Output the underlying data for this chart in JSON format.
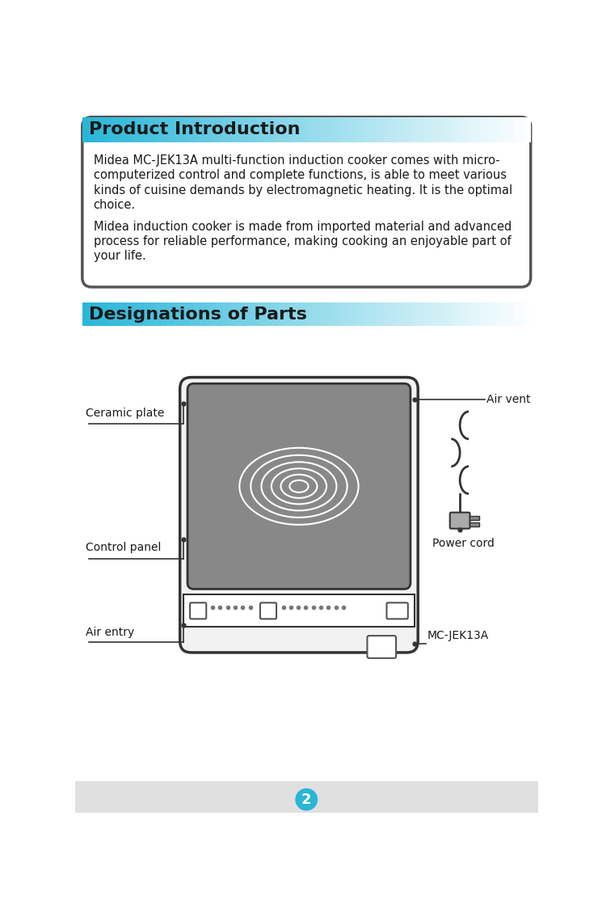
{
  "bg_color": "#ffffff",
  "page_num": "2",
  "page_num_bg": "#29b6d8",
  "section1_title": "Product Introduction",
  "section1_title_color": "#1a1a1a",
  "section1_header_bg": "#29b6d8",
  "section1_border_color": "#555555",
  "section1_lines1": [
    "Midea MC-JEK13A multi-function induction cooker comes with micro-",
    "computerized control and complete functions, is able to meet various",
    "kinds of cuisine demands by electromagnetic heating. It is the optimal",
    "choice."
  ],
  "section1_lines2": [
    "Midea induction cooker is made from imported material and advanced",
    "process for reliable performance, making cooking an enjoyable part of",
    "your life."
  ],
  "section2_title": "Designations of Parts",
  "section2_title_color": "#1a1a1a",
  "section2_header_bg": "#29b6d8",
  "label_ceramic_plate": "Ceramic plate",
  "label_control_panel": "Control panel",
  "label_air_entry": "Air entry",
  "label_air_vent": "Air vent",
  "label_power_cord": "Power cord",
  "label_mc": "MC-JEK13A",
  "cooker_body_color": "#f2f2f2",
  "cooker_outline_color": "#333333",
  "cooker_plate_color": "#888888",
  "text_color": "#1a1a1a",
  "font_size_title": 16,
  "font_size_body": 10.5,
  "font_size_label": 10,
  "bottom_bar_color": "#e0e0e0"
}
